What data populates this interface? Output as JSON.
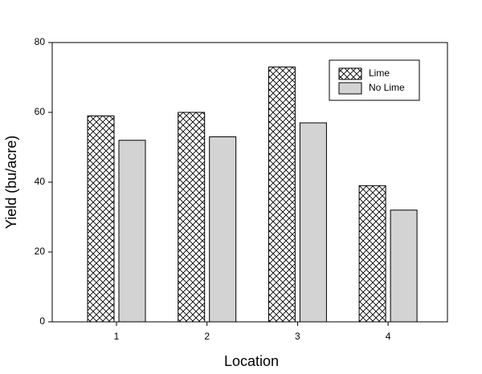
{
  "chart_data": {
    "type": "bar",
    "x_label": "Location",
    "y_label": "Yield (bu/acre)",
    "categories": [
      "1",
      "2",
      "3",
      "4"
    ],
    "series": [
      {
        "name": "Lime",
        "color": "#ffffff",
        "hatch": "crosshatch",
        "values": [
          59,
          60,
          73,
          39
        ]
      },
      {
        "name": "No Lime",
        "color": "#d3d3d3",
        "values": [
          52,
          53,
          57,
          32
        ]
      }
    ],
    "ylim": [
      0,
      80
    ],
    "yticks": [
      0,
      20,
      40,
      60,
      80
    ],
    "grid": false,
    "legend": "upper right"
  }
}
